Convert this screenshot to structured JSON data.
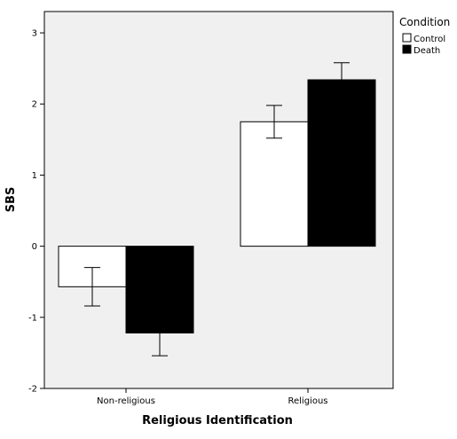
{
  "chart_data": {
    "type": "bar",
    "xlabel": "Religious Identification",
    "ylabel": "SBS",
    "categories": [
      "Non-religious",
      "Religious"
    ],
    "ylim": [
      -2,
      3.3
    ],
    "yticks": [
      "-2",
      "-1",
      "0",
      "1",
      "2",
      "3"
    ],
    "legend": {
      "title": "Condition",
      "position": "top-right-outside"
    },
    "series": [
      {
        "name": "Control",
        "color": "#ffffff",
        "values": [
          -0.57,
          1.75
        ],
        "err_low": [
          -0.84,
          1.52
        ],
        "err_high": [
          -0.3,
          1.98
        ]
      },
      {
        "name": "Death",
        "color": "#000000",
        "values": [
          -1.22,
          2.34
        ],
        "err_low": [
          -1.54,
          2.1
        ],
        "err_high": [
          -0.9,
          2.58
        ]
      }
    ]
  }
}
